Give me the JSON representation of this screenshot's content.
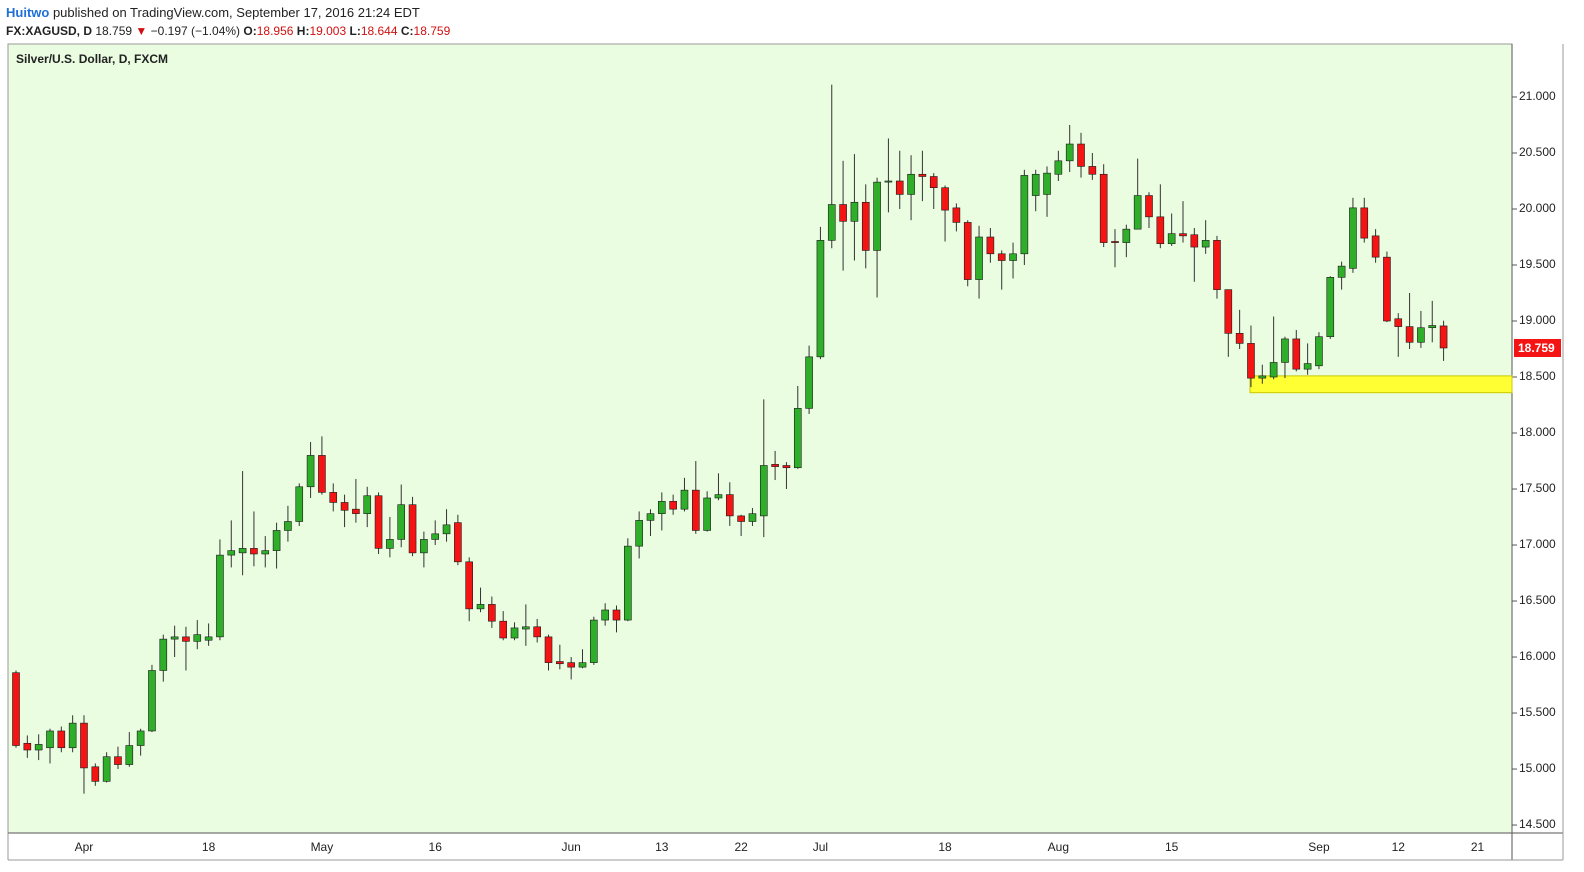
{
  "header": {
    "author": "Huitwo",
    "published": "published on TradingView.com, September 17, 2016 21:24 EDT",
    "symbol": "FX:XAGUSD, D",
    "price": "18.759",
    "change": "−0.197 (−1.04%)",
    "open_label": "O:",
    "open": "18.956",
    "high_label": "H:",
    "high": "19.003",
    "low_label": "L:",
    "low": "18.644",
    "close_label": "C:",
    "close": "18.759"
  },
  "chart_data": {
    "type": "candlestick",
    "title": "Silver/U.S. Dollar, D, FXCM",
    "up_color": "#2fae2a",
    "down_color": "#f51414",
    "wick_color": "#333333",
    "background": "#eafde1",
    "zone": {
      "low": 18.36,
      "high": 18.51,
      "color": "#ffff33"
    },
    "ylim": [
      14.429,
      21.473
    ],
    "yticks": [
      {
        "value": 14.5,
        "label": "14.500"
      },
      {
        "value": 15,
        "label": "15.000"
      },
      {
        "value": 15.5,
        "label": "15.500"
      },
      {
        "value": 16,
        "label": "16.000"
      },
      {
        "value": 16.5,
        "label": "16.500"
      },
      {
        "value": 17,
        "label": "17.000"
      },
      {
        "value": 17.5,
        "label": "17.500"
      },
      {
        "value": 18,
        "label": "18.000"
      },
      {
        "value": 18.5,
        "label": "18.500"
      },
      {
        "value": 19,
        "label": "19.000"
      },
      {
        "value": 19.5,
        "label": "19.500"
      },
      {
        "value": 20,
        "label": "20.000"
      },
      {
        "value": 20.5,
        "label": "20.500"
      },
      {
        "value": 21,
        "label": "21.000"
      }
    ],
    "categories": [
      null,
      null,
      null,
      null,
      null,
      null,
      "Apr",
      null,
      null,
      null,
      null,
      null,
      null,
      null,
      null,
      null,
      null,
      "18",
      null,
      null,
      null,
      null,
      null,
      null,
      null,
      null,
      null,
      "May",
      null,
      null,
      null,
      null,
      null,
      null,
      null,
      null,
      null,
      "16",
      null,
      null,
      null,
      null,
      null,
      null,
      null,
      null,
      null,
      null,
      null,
      "Jun",
      null,
      null,
      null,
      null,
      null,
      null,
      null,
      "13",
      null,
      null,
      null,
      null,
      null,
      null,
      "22",
      null,
      null,
      null,
      null,
      null,
      null,
      "Jul",
      null,
      null,
      null,
      null,
      null,
      null,
      null,
      null,
      null,
      null,
      "18",
      null,
      null,
      null,
      null,
      null,
      null,
      null,
      null,
      null,
      "Aug",
      null,
      null,
      null,
      null,
      null,
      null,
      null,
      null,
      null,
      "15",
      null,
      null,
      null,
      null,
      null,
      null,
      null,
      null,
      null,
      null,
      null,
      null,
      "Sep",
      null,
      null,
      null,
      null,
      null,
      null,
      "12",
      null,
      null,
      null,
      null,
      null,
      null,
      "21"
    ],
    "open": [
      15.86,
      15.23,
      15.17,
      15.19,
      15.34,
      15.19,
      15.41,
      15.02,
      14.89,
      15.11,
      15.04,
      15.21,
      15.34,
      15.88,
      16.16,
      16.18,
      16.14,
      16.15,
      16.18,
      16.91,
      16.93,
      16.97,
      16.92,
      16.95,
      17.13,
      17.21,
      17.52,
      17.8,
      17.47,
      17.38,
      17.32,
      17.28,
      17.44,
      16.97,
      17.05,
      17.36,
      16.93,
      17.05,
      17.1,
      17.2,
      16.85,
      16.43,
      16.47,
      16.32,
      16.17,
      16.25,
      16.27,
      16.18,
      15.96,
      15.95,
      15.91,
      15.95,
      16.33,
      16.42,
      16.33,
      16.99,
      17.22,
      17.28,
      17.39,
      17.32,
      17.49,
      17.13,
      17.42,
      17.45,
      17.26,
      17.21,
      17.26,
      17.72,
      17.71,
      17.69,
      18.22,
      18.68,
      19.72,
      20.04,
      19.89,
      20.06,
      19.63,
      20.24,
      20.25,
      20.13,
      20.31,
      20.29,
      20.19,
      20.01,
      19.88,
      19.37,
      19.75,
      19.6,
      19.54,
      19.6,
      20.12,
      20.13,
      20.31,
      20.43,
      20.58,
      20.38,
      20.31,
      19.71,
      19.7,
      19.82,
      20.12,
      19.93,
      19.69,
      19.78,
      19.77,
      19.66,
      19.72,
      19.28,
      18.89,
      18.8,
      18.49,
      18.5,
      18.63,
      18.84,
      18.57,
      18.6,
      18.86,
      19.39,
      19.47,
      20.01,
      19.76,
      19.57,
      19.02,
      18.95,
      18.81,
      18.94,
      18.956,
      null,
      null,
      null
    ],
    "high": [
      15.88,
      15.3,
      15.31,
      15.36,
      15.38,
      15.48,
      15.48,
      15.05,
      15.15,
      15.2,
      15.33,
      15.36,
      15.93,
      16.2,
      16.28,
      16.27,
      16.33,
      16.3,
      17.05,
      17.22,
      17.66,
      17.3,
      17.08,
      17.2,
      17.35,
      17.55,
      17.92,
      17.97,
      17.55,
      17.45,
      17.59,
      17.52,
      17.47,
      17.25,
      17.54,
      17.43,
      17.12,
      17.22,
      17.32,
      17.27,
      16.89,
      16.62,
      16.54,
      16.41,
      16.31,
      16.47,
      16.34,
      16.2,
      16.11,
      16.0,
      16.07,
      16.36,
      16.48,
      16.46,
      17.06,
      17.3,
      17.32,
      17.47,
      17.45,
      17.6,
      17.75,
      17.48,
      17.64,
      17.56,
      17.27,
      17.33,
      18.3,
      17.84,
      17.74,
      18.42,
      18.78,
      19.84,
      21.11,
      20.43,
      20.49,
      20.22,
      20.28,
      20.63,
      20.52,
      20.48,
      20.52,
      20.32,
      20.21,
      20.05,
      19.9,
      19.85,
      19.83,
      19.63,
      19.7,
      20.35,
      20.35,
      20.38,
      20.52,
      20.75,
      20.68,
      20.5,
      20.4,
      19.82,
      19.86,
      20.45,
      20.15,
      20.22,
      19.96,
      20.07,
      19.83,
      19.9,
      19.76,
      19.28,
      19.1,
      18.96,
      18.61,
      19.04,
      18.86,
      18.92,
      18.8,
      18.9,
      19.4,
      19.53,
      20.1,
      20.1,
      19.82,
      19.62,
      19.07,
      19.25,
      19.09,
      19.18,
      19.003,
      null,
      null,
      null
    ],
    "low": [
      15.19,
      15.1,
      15.08,
      15.05,
      15.15,
      15.15,
      14.78,
      14.85,
      14.88,
      15.0,
      15.02,
      15.12,
      15.33,
      15.78,
      16.0,
      15.88,
      16.07,
      16.1,
      16.15,
      16.8,
      16.73,
      16.81,
      16.8,
      16.79,
      17.03,
      17.17,
      17.42,
      17.45,
      17.3,
      17.16,
      17.2,
      17.16,
      16.92,
      16.89,
      16.98,
      16.9,
      16.8,
      17.0,
      17.03,
      16.82,
      16.32,
      16.4,
      16.26,
      16.15,
      16.15,
      16.1,
      16.13,
      15.88,
      15.89,
      15.8,
      15.9,
      15.93,
      16.28,
      16.22,
      16.32,
      16.88,
      17.08,
      17.13,
      17.27,
      17.3,
      17.1,
      17.12,
      17.4,
      17.17,
      17.08,
      17.17,
      17.07,
      17.58,
      17.5,
      17.68,
      18.17,
      18.66,
      19.65,
      19.45,
      19.54,
      19.47,
      19.21,
      19.97,
      20.0,
      19.9,
      20.07,
      20.0,
      19.71,
      19.8,
      19.31,
      19.2,
      19.52,
      19.28,
      19.38,
      19.5,
      19.98,
      19.93,
      20.25,
      20.33,
      20.28,
      20.26,
      19.66,
      19.48,
      19.57,
      19.82,
      19.83,
      19.65,
      19.67,
      19.7,
      19.35,
      19.6,
      19.2,
      18.68,
      18.75,
      18.41,
      18.44,
      18.48,
      18.49,
      18.55,
      18.52,
      18.57,
      18.84,
      19.28,
      19.43,
      19.7,
      19.52,
      18.99,
      18.68,
      18.75,
      18.76,
      18.81,
      18.644,
      null,
      null,
      null
    ],
    "close": [
      15.21,
      15.17,
      15.22,
      15.34,
      15.19,
      15.41,
      15.01,
      14.89,
      15.11,
      15.04,
      15.21,
      15.34,
      15.88,
      16.16,
      16.18,
      16.14,
      16.2,
      16.18,
      16.91,
      16.95,
      16.97,
      16.92,
      16.95,
      17.13,
      17.21,
      17.52,
      17.8,
      17.47,
      17.38,
      17.31,
      17.28,
      17.44,
      16.97,
      17.05,
      17.36,
      16.93,
      17.05,
      17.1,
      17.18,
      16.85,
      16.43,
      16.47,
      16.32,
      16.17,
      16.26,
      16.27,
      16.18,
      15.95,
      15.94,
      15.91,
      15.95,
      16.33,
      16.42,
      16.33,
      16.99,
      17.22,
      17.28,
      17.39,
      17.32,
      17.49,
      17.13,
      17.42,
      17.45,
      17.26,
      17.21,
      17.28,
      17.71,
      17.7,
      17.69,
      18.22,
      18.68,
      19.72,
      20.04,
      19.89,
      20.06,
      19.63,
      20.24,
      20.25,
      20.13,
      20.31,
      20.29,
      20.19,
      19.99,
      19.88,
      19.37,
      19.75,
      19.6,
      19.54,
      19.6,
      20.3,
      20.31,
      20.32,
      20.43,
      20.58,
      20.38,
      20.31,
      19.7,
      19.7,
      19.82,
      20.12,
      19.93,
      19.69,
      19.78,
      19.76,
      19.66,
      19.72,
      19.28,
      18.89,
      18.8,
      18.49,
      18.51,
      18.63,
      18.84,
      18.57,
      18.62,
      18.86,
      19.39,
      19.49,
      20.01,
      19.74,
      19.57,
      19.0,
      18.95,
      18.81,
      18.94,
      18.96,
      18.759,
      null,
      null,
      null
    ]
  }
}
